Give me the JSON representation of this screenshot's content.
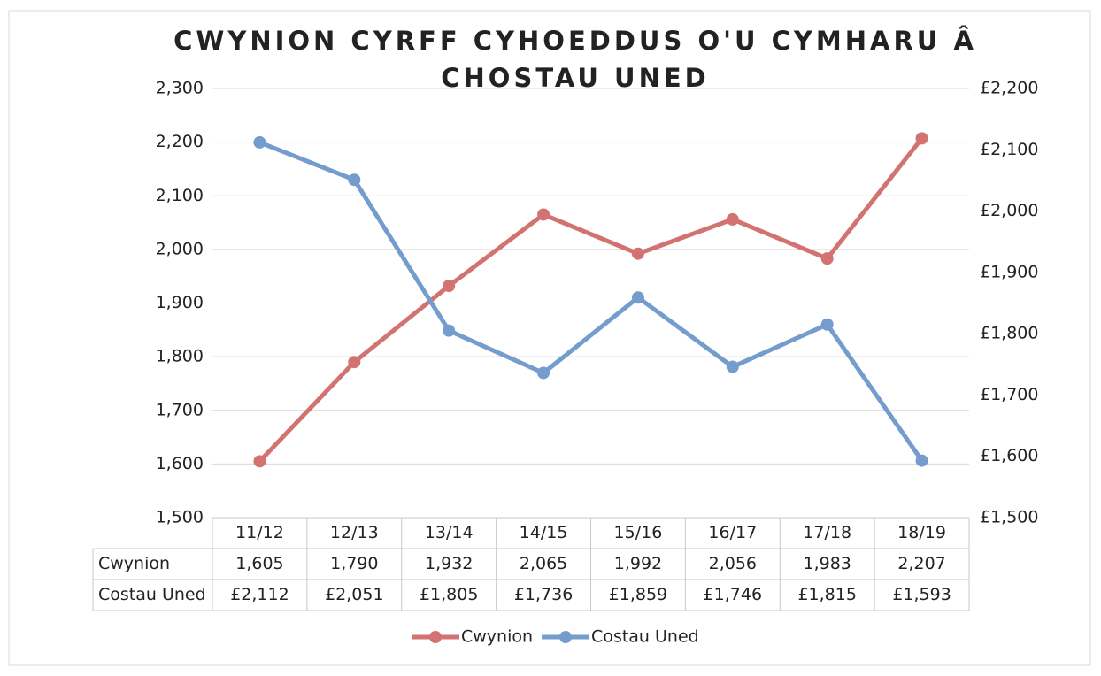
{
  "chart_data": {
    "type": "line",
    "title": [
      "CWYNION CYRFF CYHOEDDUS O'U CYMHARU Â",
      "CHOSTAU UNED"
    ],
    "categories": [
      "11/12",
      "12/13",
      "13/14",
      "14/15",
      "15/16",
      "16/17",
      "17/18",
      "18/19"
    ],
    "series": [
      {
        "name": "Cwynion",
        "color": "#d27372",
        "values": [
          1605,
          1790,
          1932,
          2065,
          1992,
          2056,
          1983,
          2207
        ],
        "value_labels": [
          "1,605",
          "1,790",
          "1,932",
          "2,065",
          "1,992",
          "2,056",
          "1,983",
          "2,207"
        ]
      },
      {
        "name": "Costau Uned",
        "color": "#749ccd",
        "axis": "y2",
        "values": [
          2112,
          2051,
          1805,
          1736,
          1859,
          1746,
          1815,
          1593
        ],
        "value_labels": [
          "£2,112",
          "£2,051",
          "£1,805",
          "£1,736",
          "£1,859",
          "£1,746",
          "£1,815",
          "£1,593"
        ]
      }
    ],
    "ylim": [
      1500,
      2300
    ],
    "yticks": [
      {
        "value": 1500,
        "label": "1,500"
      },
      {
        "value": 1600,
        "label": "1,600"
      },
      {
        "value": 1700,
        "label": "1,700"
      },
      {
        "value": 1800,
        "label": "1,800"
      },
      {
        "value": 1900,
        "label": "1,900"
      },
      {
        "value": 2000,
        "label": "2,000"
      },
      {
        "value": 2100,
        "label": "2,100"
      },
      {
        "value": 2200,
        "label": "2,200"
      },
      {
        "value": 2300,
        "label": "2,300"
      }
    ],
    "y2lim": [
      1500,
      2200
    ],
    "y2ticks": [
      {
        "value": 1500,
        "label": "£1,500"
      },
      {
        "value": 1600,
        "label": "£1,600"
      },
      {
        "value": 1700,
        "label": "£1,700"
      },
      {
        "value": 1800,
        "label": "£1,800"
      },
      {
        "value": 1900,
        "label": "£1,900"
      },
      {
        "value": 2000,
        "label": "£2,000"
      },
      {
        "value": 2100,
        "label": "£2,100"
      },
      {
        "value": 2200,
        "label": "£2,200"
      }
    ],
    "grid": true,
    "legend": "bottom"
  }
}
